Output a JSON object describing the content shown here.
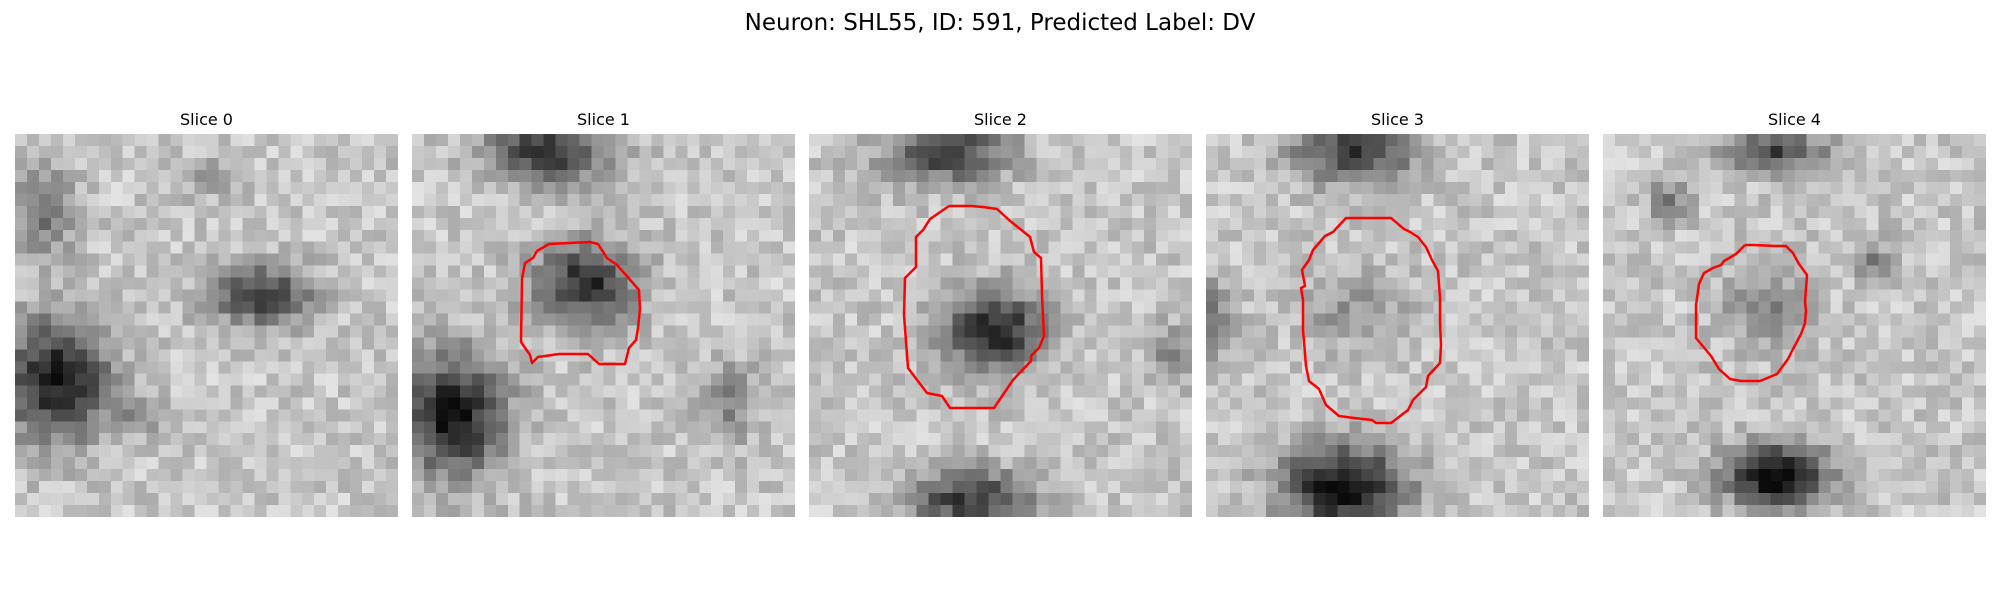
{
  "figure": {
    "title": "Neuron: SHL55, ID: 591, Predicted Label: DV"
  },
  "panels": [
    {
      "title": "Slice 0",
      "has_contour": false
    },
    {
      "title": "Slice 1",
      "has_contour": true
    },
    {
      "title": "Slice 2",
      "has_contour": true
    },
    {
      "title": "Slice 3",
      "has_contour": true
    },
    {
      "title": "Slice 4",
      "has_contour": true
    }
  ],
  "colors": {
    "contour": "#ff0000",
    "background": "#ffffff"
  }
}
